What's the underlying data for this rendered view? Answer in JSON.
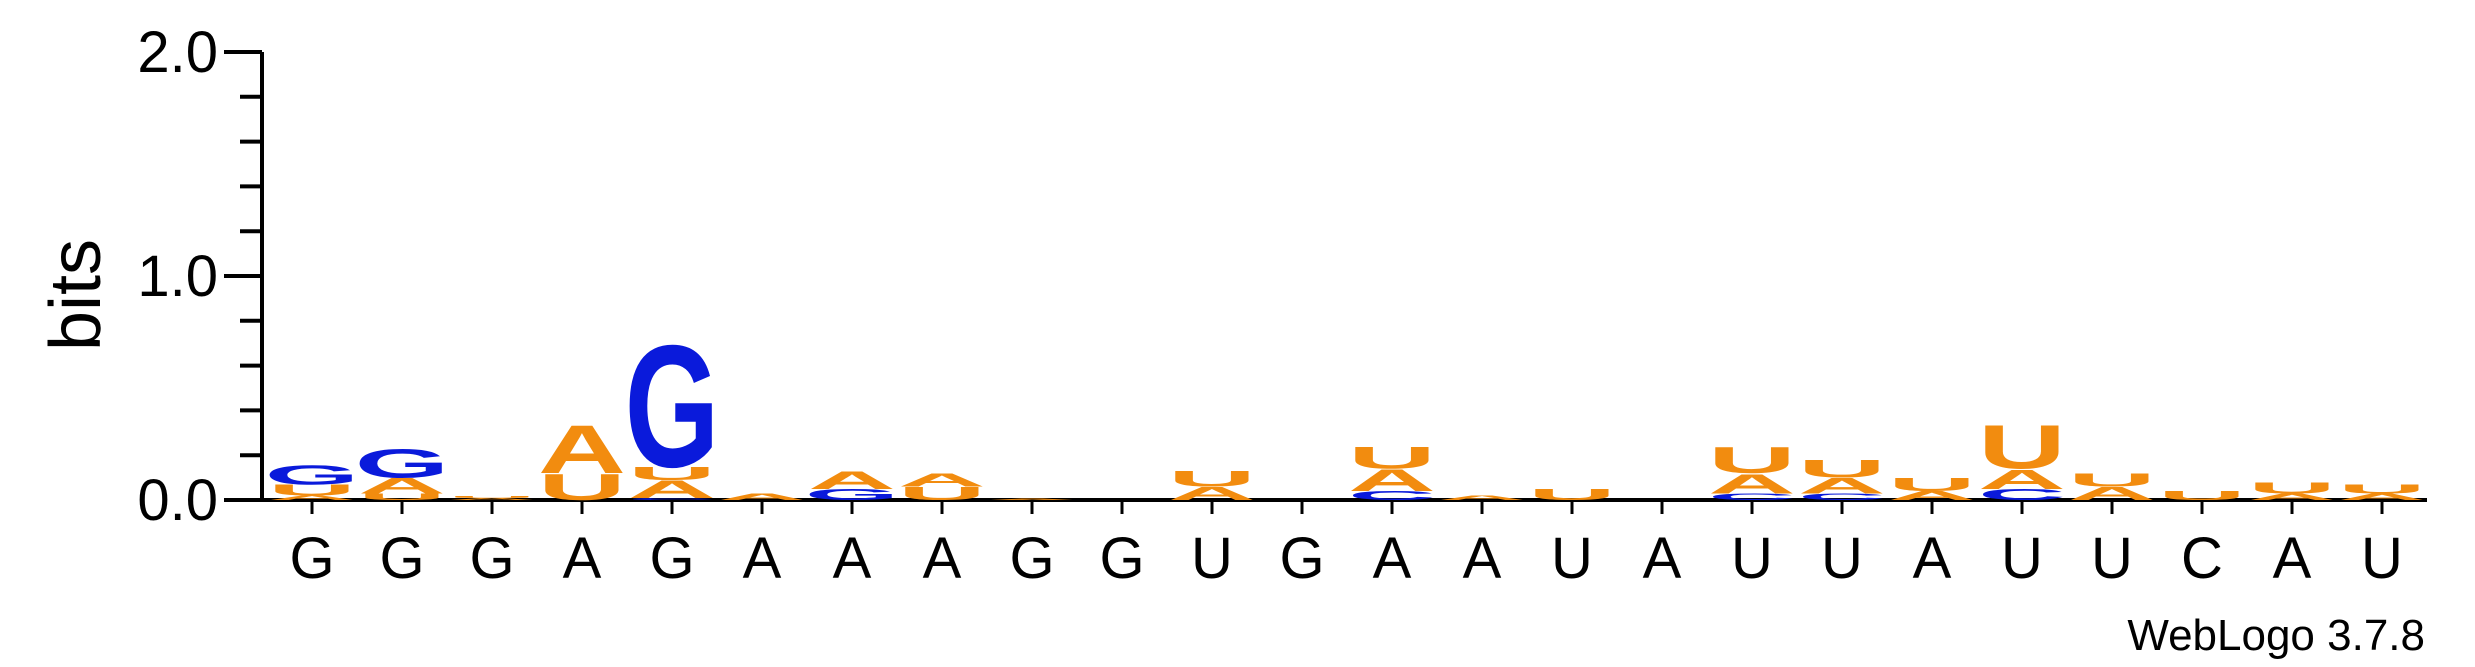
{
  "chart_data": {
    "type": "sequence-logo",
    "ylabel": "bits",
    "ylim": [
      0,
      2.0
    ],
    "yticks": [
      "0.0",
      "1.0",
      "2.0"
    ],
    "credit": "WebLogo 3.7.8",
    "colors": {
      "A": "#f28c0f",
      "U": "#f28c0f",
      "G": "#0a1adb",
      "C": "#0a1adb"
    },
    "sequence": [
      "G",
      "G",
      "G",
      "A",
      "G",
      "A",
      "A",
      "A",
      "G",
      "G",
      "U",
      "G",
      "A",
      "A",
      "U",
      "A",
      "U",
      "U",
      "A",
      "U",
      "U",
      "C",
      "A",
      "U"
    ],
    "positions": [
      [
        {
          "l": "A",
          "b": 0.02
        },
        {
          "l": "U",
          "b": 0.05
        },
        {
          "l": "G",
          "b": 0.09
        }
      ],
      [
        {
          "l": "U",
          "b": 0.03
        },
        {
          "l": "A",
          "b": 0.07
        },
        {
          "l": "G",
          "b": 0.13
        }
      ],
      [
        {
          "l": "A",
          "b": 0.01
        },
        {
          "l": "U",
          "b": 0.01
        }
      ],
      [
        {
          "l": "U",
          "b": 0.12
        },
        {
          "l": "A",
          "b": 0.22
        }
      ],
      [
        {
          "l": "C",
          "b": 0.01
        },
        {
          "l": "A",
          "b": 0.08
        },
        {
          "l": "U",
          "b": 0.06
        },
        {
          "l": "G",
          "b": 0.56
        }
      ],
      [
        {
          "l": "A",
          "b": 0.03
        }
      ],
      [
        {
          "l": "G",
          "b": 0.05
        },
        {
          "l": "A",
          "b": 0.08
        }
      ],
      [
        {
          "l": "U",
          "b": 0.06
        },
        {
          "l": "A",
          "b": 0.06
        }
      ],
      [
        {
          "l": "A",
          "b": 0.005
        }
      ],
      [],
      [
        {
          "l": "A",
          "b": 0.06
        },
        {
          "l": "U",
          "b": 0.07
        }
      ],
      [],
      [
        {
          "l": "C",
          "b": 0.04
        },
        {
          "l": "A",
          "b": 0.1
        },
        {
          "l": "U",
          "b": 0.1
        }
      ],
      [
        {
          "l": "A",
          "b": 0.02
        }
      ],
      [
        {
          "l": "U",
          "b": 0.05
        }
      ],
      [],
      [
        {
          "l": "C",
          "b": 0.03
        },
        {
          "l": "A",
          "b": 0.09
        },
        {
          "l": "U",
          "b": 0.12
        }
      ],
      [
        {
          "l": "C",
          "b": 0.03
        },
        {
          "l": "A",
          "b": 0.07
        },
        {
          "l": "U",
          "b": 0.08
        }
      ],
      [
        {
          "l": "A",
          "b": 0.04
        },
        {
          "l": "U",
          "b": 0.06
        }
      ],
      [
        {
          "l": "C",
          "b": 0.05
        },
        {
          "l": "A",
          "b": 0.09
        },
        {
          "l": "U",
          "b": 0.2
        }
      ],
      [
        {
          "l": "A",
          "b": 0.06
        },
        {
          "l": "U",
          "b": 0.06
        }
      ],
      [
        {
          "l": "U",
          "b": 0.04
        }
      ],
      [
        {
          "l": "A",
          "b": 0.03
        },
        {
          "l": "U",
          "b": 0.05
        }
      ],
      [
        {
          "l": "A",
          "b": 0.03
        },
        {
          "l": "U",
          "b": 0.04
        }
      ]
    ]
  }
}
